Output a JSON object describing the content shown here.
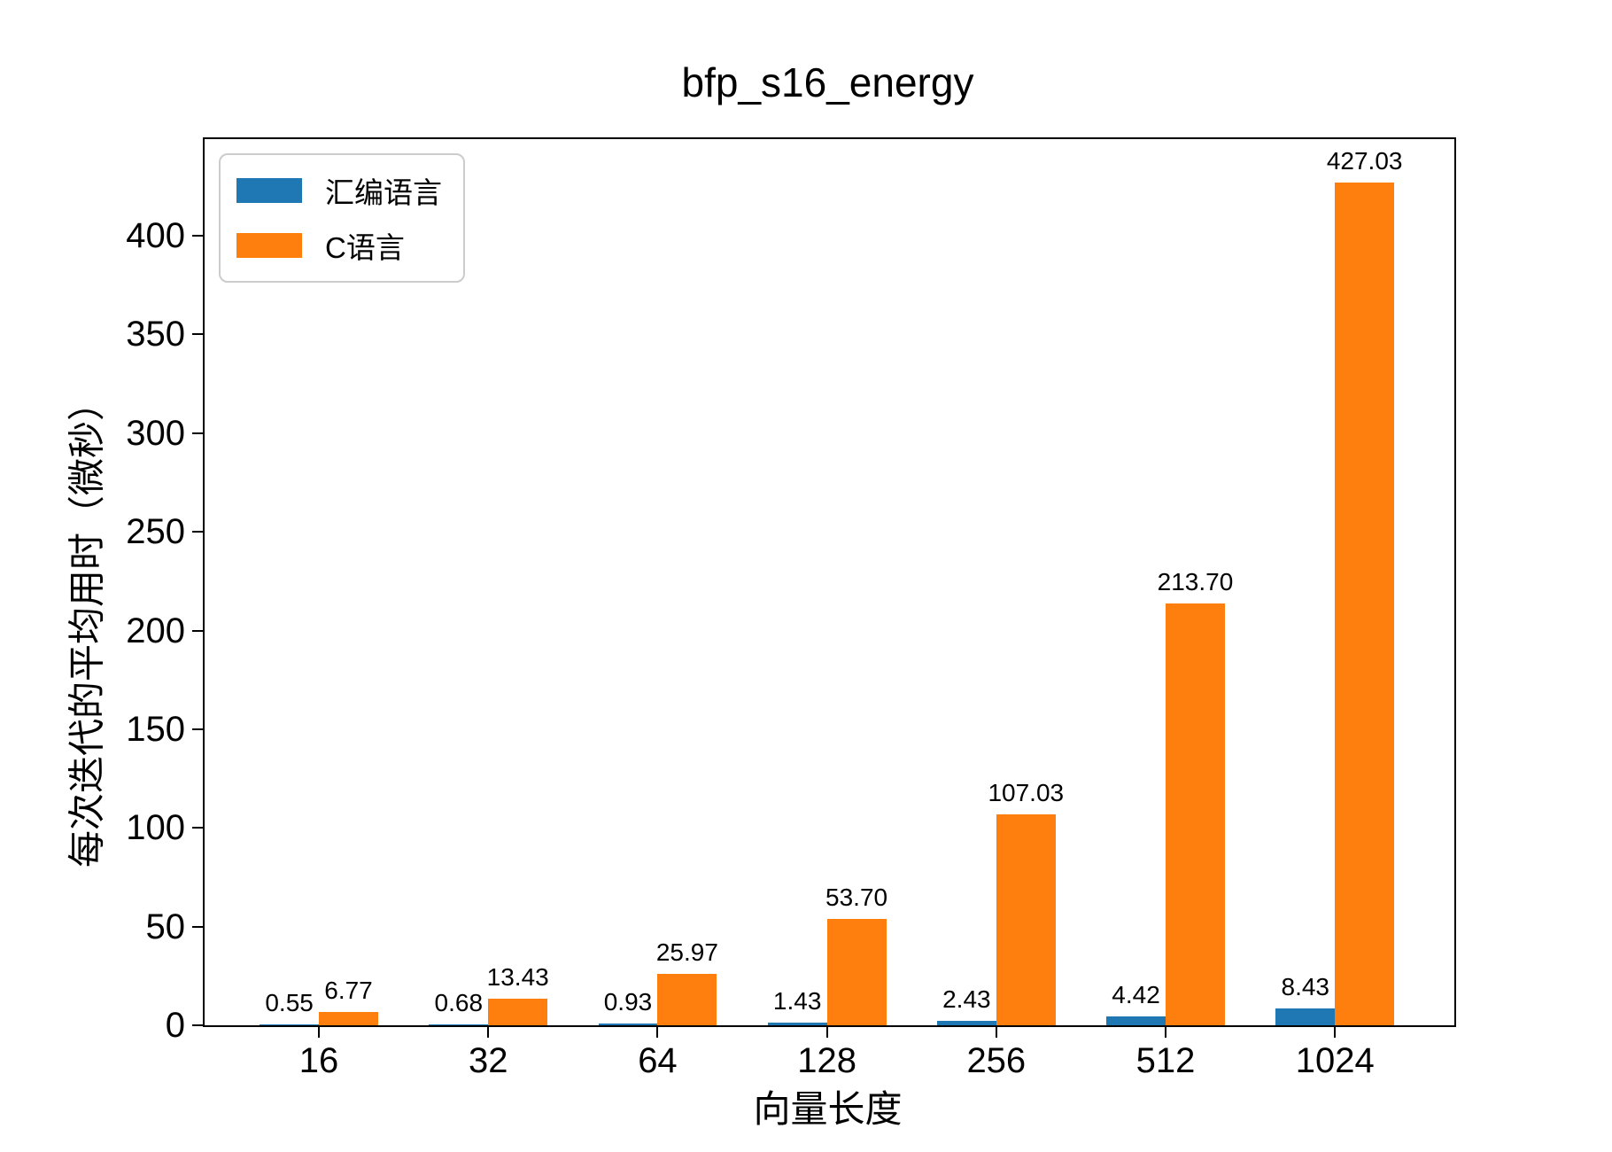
{
  "chart_data": {
    "type": "bar",
    "title": "bfp_s16_energy",
    "xlabel": "向量长度",
    "ylabel": "每次迭代的平均用时（微秒）",
    "categories": [
      "16",
      "32",
      "64",
      "128",
      "256",
      "512",
      "1024"
    ],
    "series": [
      {
        "name": "汇编语言",
        "color": "#1f77b4",
        "values": [
          0.55,
          0.68,
          0.93,
          1.43,
          2.43,
          4.42,
          8.43
        ],
        "labels": [
          "0.55",
          "0.68",
          "0.93",
          "1.43",
          "2.43",
          "4.42",
          "8.43"
        ]
      },
      {
        "name": "C语言",
        "color": "#ff7f0e",
        "values": [
          6.77,
          13.43,
          25.97,
          53.7,
          107.03,
          213.7,
          427.03
        ],
        "labels": [
          "6.77",
          "13.43",
          "25.97",
          "53.70",
          "107.03",
          "213.70",
          "427.03"
        ]
      }
    ],
    "yticks": [
      0,
      50,
      100,
      150,
      200,
      250,
      300,
      350,
      400
    ],
    "ylim": [
      0,
      449
    ],
    "grid": false,
    "legend_position": "upper-left",
    "axis_color": "#000000",
    "background_color": "#ffffff"
  }
}
